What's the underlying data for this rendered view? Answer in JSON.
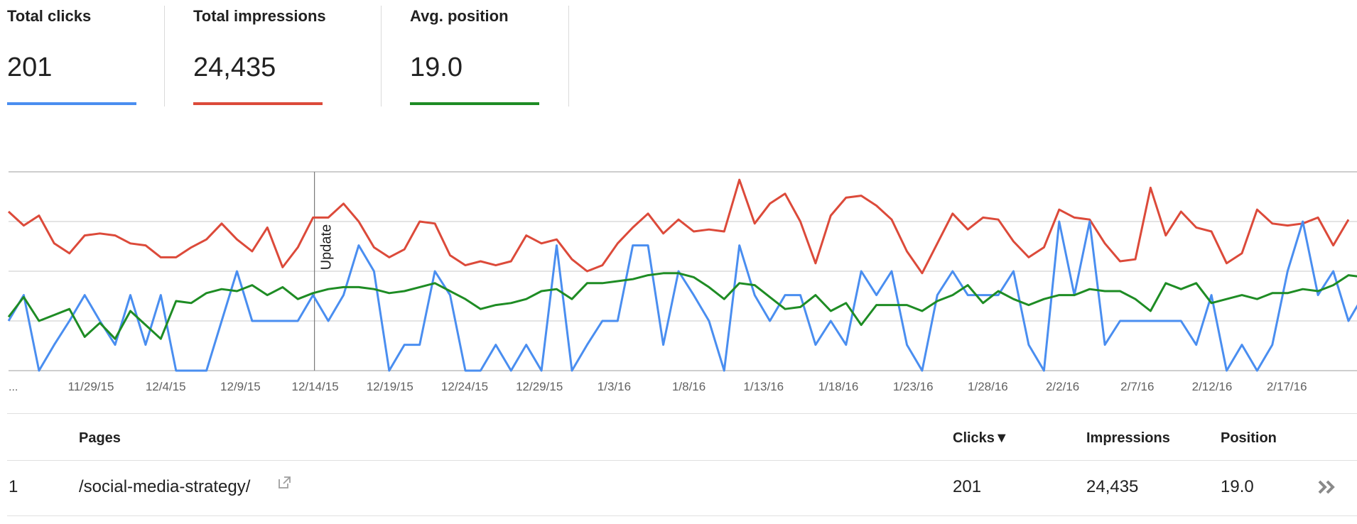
{
  "metrics": [
    {
      "label": "Total clicks",
      "value": "201",
      "color": "#4a8ef0"
    },
    {
      "label": "Total impressions",
      "value": "24,435",
      "color": "#dc4a3a"
    },
    {
      "label": "Avg. position",
      "value": "19.0",
      "color": "#1e8c24"
    }
  ],
  "chart_data": {
    "type": "line",
    "x_start_label": "...",
    "x_tick_labels": [
      "11/29/15",
      "12/4/15",
      "12/9/15",
      "12/14/15",
      "12/19/15",
      "12/24/15",
      "12/29/15",
      "1/3/16",
      "1/8/16",
      "1/13/16",
      "1/18/16",
      "1/23/16",
      "1/28/16",
      "2/2/16",
      "2/7/16",
      "2/12/16",
      "2/17/16"
    ],
    "annotation": {
      "date": "12/14/15",
      "label": "Update"
    },
    "grid": true,
    "series": [
      {
        "name": "Total impressions",
        "color": "#dc4a3a",
        "values": [
          0.8,
          0.73,
          0.78,
          0.64,
          0.59,
          0.68,
          0.69,
          0.68,
          0.64,
          0.63,
          0.57,
          0.57,
          0.62,
          0.66,
          0.74,
          0.66,
          0.6,
          0.72,
          0.52,
          0.62,
          0.77,
          0.77,
          0.84,
          0.75,
          0.62,
          0.57,
          0.61,
          0.75,
          0.74,
          0.58,
          0.53,
          0.55,
          0.53,
          0.55,
          0.68,
          0.64,
          0.66,
          0.56,
          0.5,
          0.53,
          0.64,
          0.72,
          0.79,
          0.69,
          0.76,
          0.7,
          0.71,
          0.7,
          0.96,
          0.74,
          0.84,
          0.89,
          0.75,
          0.54,
          0.78,
          0.87,
          0.88,
          0.83,
          0.76,
          0.6,
          0.49,
          0.64,
          0.79,
          0.71,
          0.77,
          0.76,
          0.65,
          0.57,
          0.62,
          0.81,
          0.77,
          0.76,
          0.64,
          0.55,
          0.56,
          0.92,
          0.68,
          0.8,
          0.72,
          0.7,
          0.54,
          0.59,
          0.81,
          0.74,
          0.73,
          0.74,
          0.77,
          0.63,
          0.76
        ],
        "linewidth": 3
      },
      {
        "name": "Total clicks",
        "color": "#4a8ef0",
        "values": [
          0.25,
          0.38,
          0.0,
          0.13,
          0.25,
          0.38,
          0.25,
          0.13,
          0.38,
          0.13,
          0.38,
          0.0,
          0.0,
          0.0,
          0.25,
          0.5,
          0.25,
          0.25,
          0.25,
          0.25,
          0.38,
          0.25,
          0.38,
          0.63,
          0.5,
          0.0,
          0.13,
          0.13,
          0.5,
          0.38,
          0.0,
          0.0,
          0.13,
          0.0,
          0.13,
          0.0,
          0.63,
          0.0,
          0.13,
          0.25,
          0.25,
          0.63,
          0.63,
          0.13,
          0.5,
          0.38,
          0.25,
          0.0,
          0.63,
          0.38,
          0.25,
          0.38,
          0.38,
          0.13,
          0.25,
          0.13,
          0.5,
          0.38,
          0.5,
          0.13,
          0.0,
          0.38,
          0.5,
          0.38,
          0.38,
          0.38,
          0.5,
          0.13,
          0.0,
          0.75,
          0.38,
          0.75,
          0.13,
          0.25,
          0.25,
          0.25,
          0.25,
          0.25,
          0.13,
          0.38,
          0.0,
          0.13,
          0.0,
          0.13,
          0.5,
          0.75,
          0.38,
          0.5,
          0.25,
          0.38
        ],
        "linewidth": 3
      },
      {
        "name": "Avg. position",
        "color": "#1e8c24",
        "values": [
          0.27,
          0.37,
          0.25,
          0.28,
          0.31,
          0.17,
          0.24,
          0.16,
          0.3,
          0.23,
          0.16,
          0.35,
          0.34,
          0.39,
          0.41,
          0.4,
          0.43,
          0.38,
          0.42,
          0.36,
          0.39,
          0.41,
          0.42,
          0.42,
          0.41,
          0.39,
          0.4,
          0.42,
          0.44,
          0.4,
          0.36,
          0.31,
          0.33,
          0.34,
          0.36,
          0.4,
          0.41,
          0.36,
          0.44,
          0.44,
          0.45,
          0.46,
          0.48,
          0.49,
          0.49,
          0.47,
          0.42,
          0.36,
          0.44,
          0.43,
          0.37,
          0.31,
          0.32,
          0.38,
          0.3,
          0.34,
          0.23,
          0.33,
          0.33,
          0.33,
          0.3,
          0.35,
          0.38,
          0.43,
          0.34,
          0.4,
          0.36,
          0.33,
          0.36,
          0.38,
          0.38,
          0.41,
          0.4,
          0.4,
          0.36,
          0.3,
          0.44,
          0.41,
          0.44,
          0.34,
          0.36,
          0.38,
          0.36,
          0.39,
          0.39,
          0.41,
          0.4,
          0.43,
          0.48,
          0.47
        ]
      }
    ]
  },
  "table": {
    "headers": {
      "pages": "Pages",
      "clicks": "Clicks▼",
      "impressions": "Impressions",
      "position": "Position"
    },
    "rows": [
      {
        "rank": "1",
        "page": "/social-media-strategy/",
        "clicks": "201",
        "impressions": "24,435",
        "position": "19.0"
      }
    ]
  },
  "icons": {
    "external_link": "external-link-icon",
    "more": "double-chevron-right-icon"
  }
}
